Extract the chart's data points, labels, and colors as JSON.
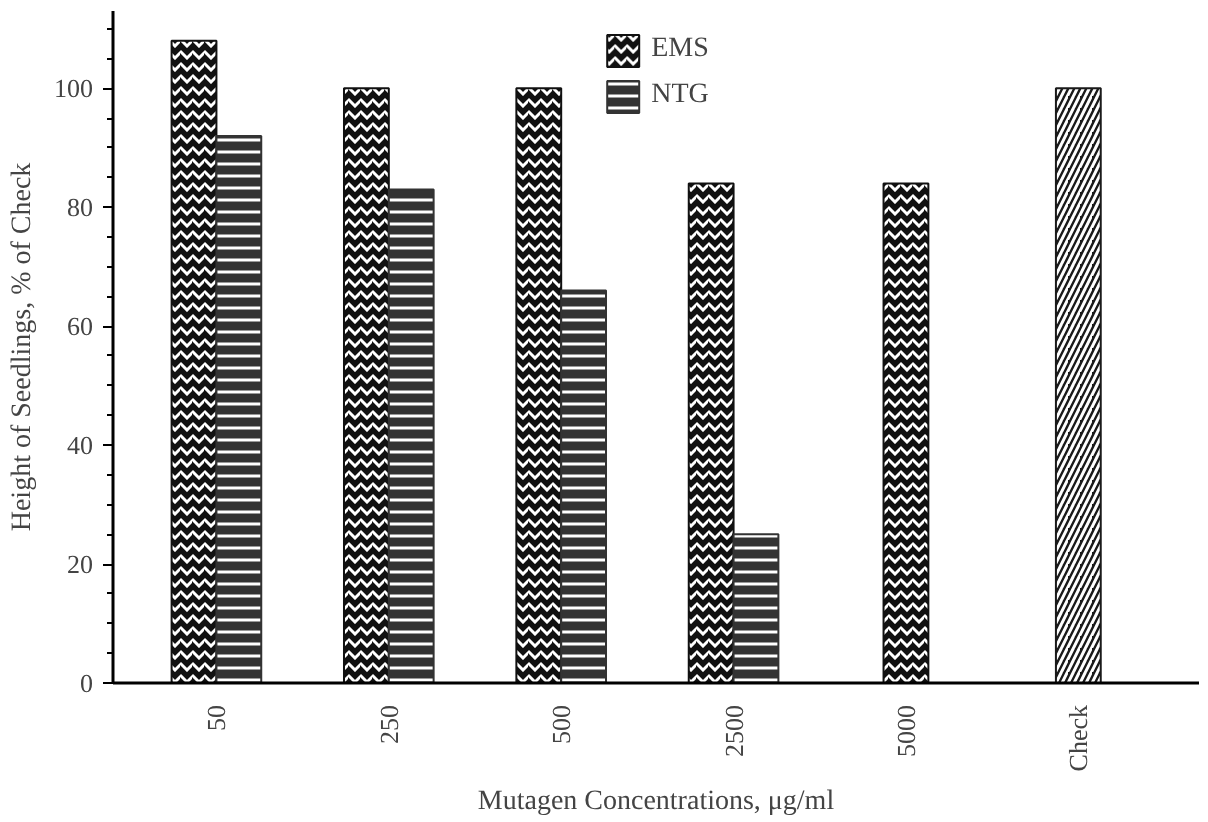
{
  "chart_data": {
    "type": "bar",
    "xlabel": "Mutagen Concentrations, μg/ml",
    "ylabel": "Height of Seedlings, % of Check",
    "categories": [
      "50",
      "250",
      "500",
      "2500",
      "5000",
      "Check"
    ],
    "series": [
      {
        "name": "EMS",
        "color": "#111111",
        "values": [
          108,
          100,
          100,
          84,
          84,
          null
        ]
      },
      {
        "name": "NTG",
        "color": "#333333",
        "values": [
          92,
          83,
          66,
          25,
          null,
          null
        ]
      },
      {
        "color": "#1a1a1a",
        "values": [
          null,
          null,
          null,
          null,
          null,
          100
        ]
      }
    ],
    "ylim": [
      0,
      113
    ],
    "yticks": [
      0,
      20,
      40,
      60,
      80,
      100
    ],
    "grid": false,
    "legend": "top"
  }
}
